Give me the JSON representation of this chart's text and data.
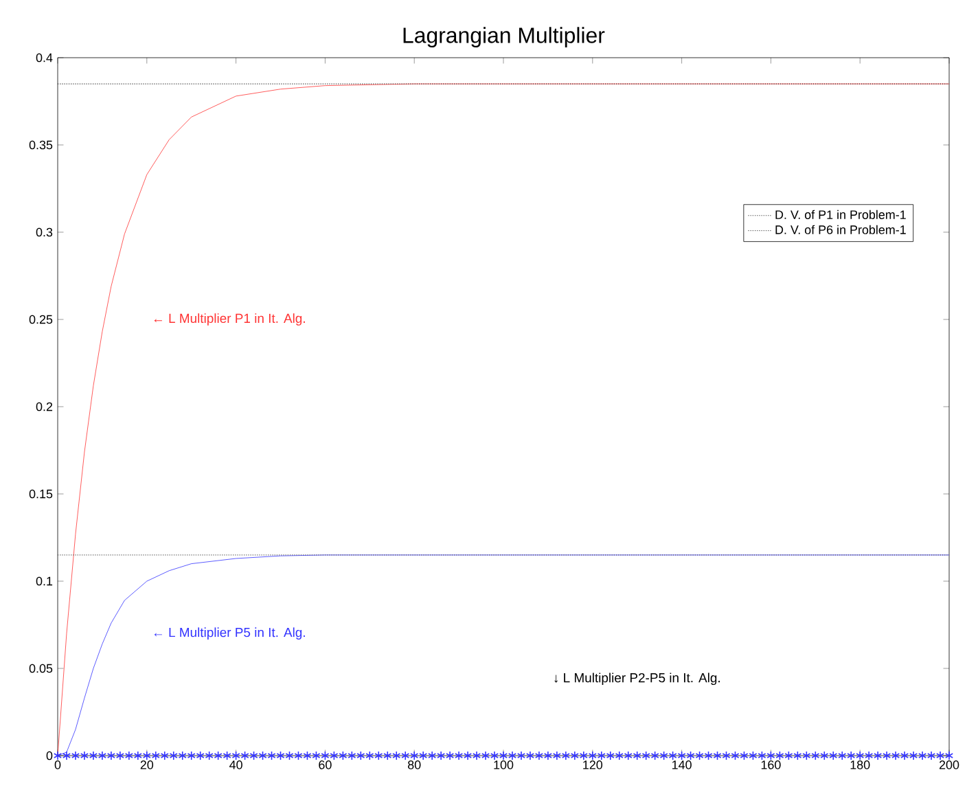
{
  "chart_data": {
    "type": "line",
    "title": "Lagrangian Multiplier",
    "xlim": [
      0,
      200
    ],
    "xticks": [
      0,
      20,
      40,
      60,
      80,
      100,
      120,
      140,
      160,
      180,
      200
    ],
    "ylim": [
      0,
      0.4
    ],
    "yticks": [
      0,
      0.05,
      0.1,
      0.15,
      0.2,
      0.25,
      0.3,
      0.35,
      0.4
    ],
    "grid": false,
    "legend": "top right",
    "marker": "none",
    "series": [
      {
        "name": "D. V. of P1 in Problem-1",
        "color": "#333333",
        "line_style": "dotted",
        "x": [
          0,
          200
        ],
        "values": [
          0.385,
          0.385
        ]
      },
      {
        "name": "D. V. of P6 in Problem-1",
        "color": "#555555",
        "line_style": "dotted",
        "x": [
          0,
          200
        ],
        "values": [
          0.115,
          0.115
        ]
      },
      {
        "color": "#ff3333",
        "line_style": "solid",
        "x": [
          0,
          2,
          4,
          6,
          8,
          10,
          12,
          15,
          20,
          25,
          30,
          40,
          50,
          60,
          80,
          200
        ],
        "values": [
          0,
          0.07,
          0.127,
          0.174,
          0.212,
          0.243,
          0.269,
          0.299,
          0.333,
          0.353,
          0.366,
          0.378,
          0.382,
          0.384,
          0.385,
          0.385
        ]
      },
      {
        "color": "#3333ff",
        "line_style": "solid",
        "x": [
          0,
          2,
          4,
          6,
          8,
          10,
          12,
          15,
          20,
          25,
          30,
          40,
          50,
          60,
          200
        ],
        "values": [
          0,
          0.002,
          0.015,
          0.033,
          0.05,
          0.064,
          0.076,
          0.089,
          0.1,
          0.106,
          0.11,
          0.113,
          0.1145,
          0.115,
          0.115
        ]
      },
      {
        "type": "scatter",
        "marker": "cross",
        "color": "#3333ff",
        "x": [
          0,
          2,
          4,
          6,
          8,
          10,
          12,
          14,
          16,
          18,
          20,
          22,
          24,
          26,
          28,
          30,
          32,
          34,
          36,
          38,
          40,
          42,
          44,
          46,
          48,
          50,
          52,
          54,
          56,
          58,
          60,
          62,
          64,
          66,
          68,
          70,
          72,
          74,
          76,
          78,
          80,
          82,
          84,
          86,
          88,
          90,
          92,
          94,
          96,
          98,
          100,
          102,
          104,
          106,
          108,
          110,
          112,
          114,
          116,
          118,
          120,
          122,
          124,
          126,
          128,
          130,
          132,
          134,
          136,
          138,
          140,
          142,
          144,
          146,
          148,
          150,
          152,
          154,
          156,
          158,
          160,
          162,
          164,
          166,
          168,
          170,
          172,
          174,
          176,
          178,
          180,
          182,
          184,
          186,
          188,
          190,
          192,
          194,
          196,
          198,
          200
        ],
        "values": [
          0,
          0,
          0,
          0,
          0,
          0,
          0,
          0,
          0,
          0,
          0,
          0,
          0,
          0,
          0,
          0,
          0,
          0,
          0,
          0,
          0,
          0,
          0,
          0,
          0,
          0,
          0,
          0,
          0,
          0,
          0,
          0,
          0,
          0,
          0,
          0,
          0,
          0,
          0,
          0,
          0,
          0,
          0,
          0,
          0,
          0,
          0,
          0,
          0,
          0,
          0,
          0,
          0,
          0,
          0,
          0,
          0,
          0,
          0,
          0,
          0,
          0,
          0,
          0,
          0,
          0,
          0,
          0,
          0,
          0,
          0,
          0,
          0,
          0,
          0,
          0,
          0,
          0,
          0,
          0,
          0,
          0,
          0,
          0,
          0,
          0,
          0,
          0,
          0,
          0,
          0,
          0,
          0,
          0,
          0,
          0,
          0,
          0,
          0,
          0,
          0
        ]
      }
    ],
    "annotations": [
      "← L Multiplier P1 in It. Alg.",
      "← L Multiplier P5 in It. Alg.",
      "↓ L Multiplier P2-P5 in It. Alg."
    ]
  }
}
